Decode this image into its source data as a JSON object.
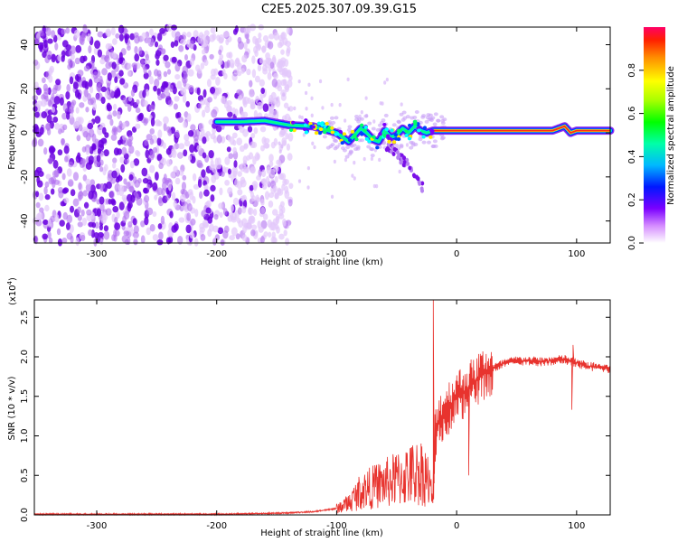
{
  "title": "C2E5.2025.307.09.39.G15",
  "chart_data": [
    {
      "type": "heatmap",
      "name": "spectrogram",
      "xlabel": "Height of straight line (km)",
      "ylabel": "Frequency (Hz)",
      "xlim": [
        -352,
        128
      ],
      "ylim": [
        -50,
        48
      ],
      "xticks": [
        -300,
        -200,
        -100,
        0,
        100
      ],
      "yticks": [
        -40,
        -20,
        0,
        20,
        40
      ],
      "noise_region_x": [
        -352,
        -148
      ],
      "signal_onset_x": -200,
      "signal_track": {
        "x": [
          -200,
          -180,
          -160,
          -140,
          -120,
          -110,
          -100,
          -95,
          -90,
          -85,
          -80,
          -75,
          -70,
          -65,
          -60,
          -55,
          -50,
          -45,
          -40,
          -35,
          -30,
          -25,
          -20,
          -10,
          0,
          20,
          40,
          60,
          80,
          90,
          95,
          100,
          128
        ],
        "y": [
          5,
          5,
          5.5,
          3.5,
          3,
          1.5,
          0,
          -2,
          -4,
          -1,
          2,
          0,
          -3,
          -4,
          1,
          -2,
          -1,
          2,
          0,
          3,
          1,
          0,
          1,
          1,
          1,
          1,
          1,
          1,
          1,
          3,
          0,
          1,
          1
        ]
      },
      "side_branch": {
        "x": [
          -60,
          -40,
          -28
        ],
        "y": [
          -5,
          -15,
          -25
        ]
      },
      "colorbar": {
        "label": "Normalized spectral amplitude",
        "range": [
          0,
          1
        ],
        "ticks": [
          0.0,
          0.2,
          0.4,
          0.6,
          0.8
        ],
        "tick_labels": [
          "0.0",
          "0.2",
          "0.4",
          "0.6",
          "0.8"
        ]
      }
    },
    {
      "type": "line",
      "name": "snr",
      "xlabel": "Height of straight line (km)",
      "ylabel": "SNR (10 * v/v)",
      "scale_label": "(x10",
      "scale_exp": "4",
      "scale_close": ")",
      "xlim": [
        -352,
        128
      ],
      "ylim": [
        0,
        2.72
      ],
      "xticks": [
        -300,
        -200,
        -100,
        0,
        100
      ],
      "yticks": [
        0.0,
        0.5,
        1.0,
        1.5,
        2.0,
        2.5
      ],
      "ytick_labels": [
        "0.0",
        "0.5",
        "1.0",
        "1.5",
        "2.0",
        "2.5"
      ],
      "color": "#e8332e",
      "envelope": {
        "x": [
          -352,
          -200,
          -150,
          -120,
          -100,
          -90,
          -80,
          -70,
          -60,
          -50,
          -40,
          -30,
          -25,
          -20,
          -18,
          -15,
          -10,
          -5,
          0,
          10,
          20,
          30,
          40,
          50,
          60,
          70,
          80,
          90,
          100,
          110,
          128
        ],
        "y": [
          0.01,
          0.01,
          0.02,
          0.04,
          0.08,
          0.15,
          0.3,
          0.35,
          0.4,
          0.45,
          0.5,
          0.55,
          0.5,
          0.2,
          1.0,
          1.2,
          1.3,
          1.4,
          1.5,
          1.6,
          1.75,
          1.85,
          1.92,
          1.95,
          1.95,
          1.94,
          1.95,
          1.97,
          1.92,
          1.88,
          1.85
        ]
      },
      "spikes": [
        {
          "x": -19.5,
          "y": 2.72
        },
        {
          "x": 97,
          "y": 2.15
        },
        {
          "x": 96,
          "y": 1.33
        },
        {
          "x": 10,
          "y": 0.5
        }
      ]
    }
  ]
}
